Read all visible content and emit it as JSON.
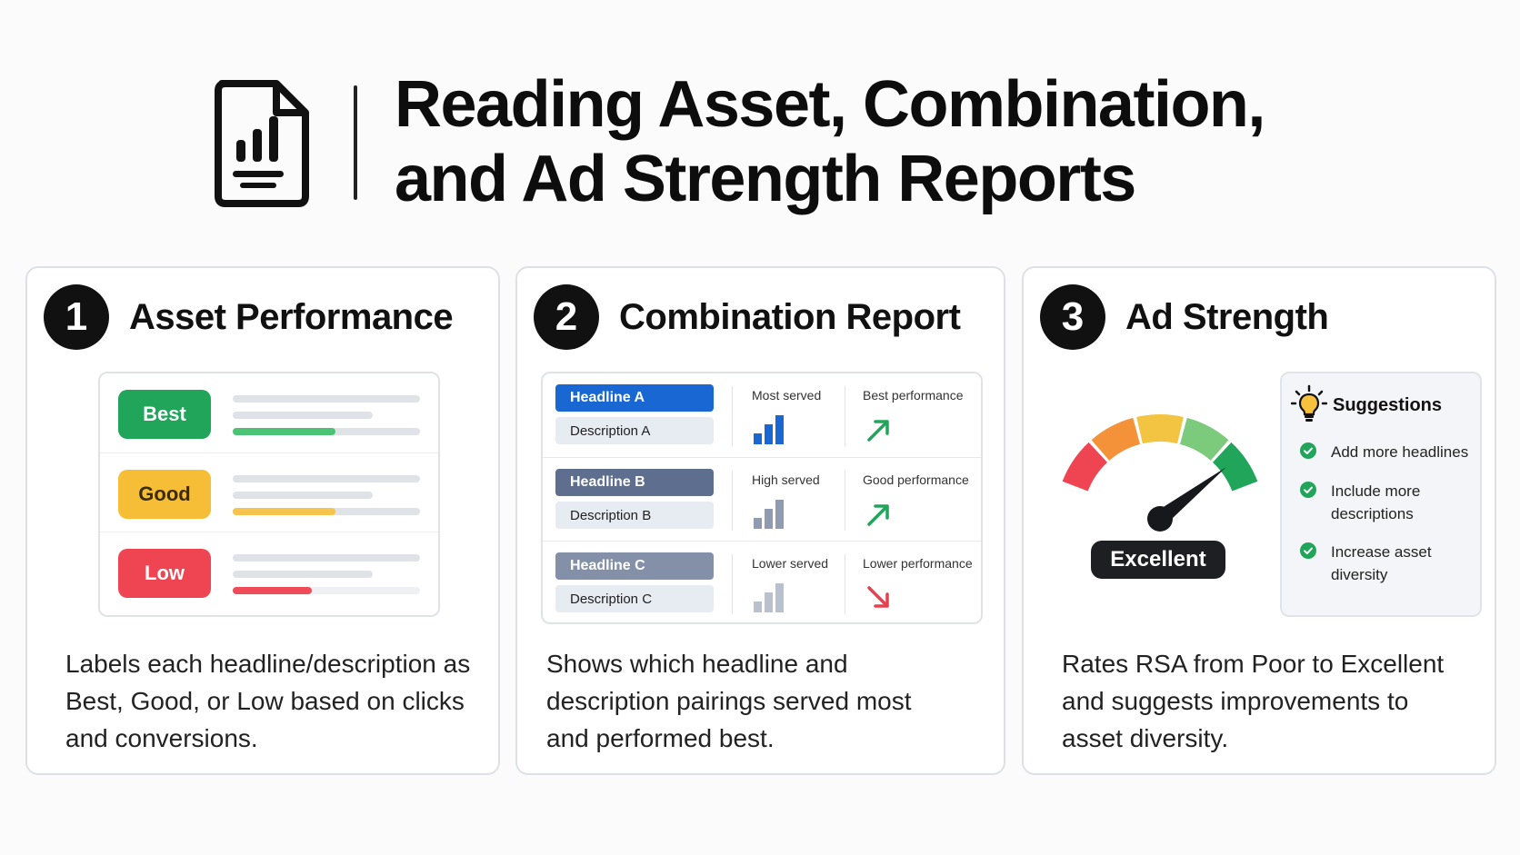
{
  "header": {
    "title_line1": "Reading Asset, Combination,",
    "title_line2": "and Ad Strength Reports",
    "icon": "report-chart-icon"
  },
  "cards": [
    {
      "number": "1",
      "title": "Asset Performance",
      "rows": [
        {
          "label": "Best",
          "color": "#21a55a",
          "text_color": "#ffffff",
          "bar_color": "#4cc274",
          "level": 0.55
        },
        {
          "label": "Good",
          "color": "#f6be36",
          "text_color": "#3a2c00",
          "bar_color": "#f6c44e",
          "level": 0.55
        },
        {
          "label": "Low",
          "color": "#ef4452",
          "text_color": "#ffffff",
          "bar_color": "#ef4b59",
          "level": 0.42
        }
      ],
      "description": "Labels each headline/description as Best, Good, or Low based on clicks and conversions."
    },
    {
      "number": "2",
      "title": "Combination Report",
      "rows": [
        {
          "headline": "Headline A",
          "description": "Description A",
          "headline_color": "#1967d2",
          "served": "Most served",
          "performance": "Best performance",
          "bar_color": "#1967d2",
          "arrow": "up",
          "arrow_color": "#21a55a"
        },
        {
          "headline": "Headline B",
          "description": "Description B",
          "headline_color": "#5d6e8f",
          "served": "High served",
          "performance": "Good performance",
          "bar_color": "#8f9bb0",
          "arrow": "up",
          "arrow_color": "#21a55a"
        },
        {
          "headline": "Headline C",
          "description": "Description C",
          "headline_color": "#8390a8",
          "served": "Lower served",
          "performance": "Lower performance",
          "bar_color": "#b9c1cf",
          "arrow": "down",
          "arrow_color": "#e7404f"
        }
      ],
      "description": "Shows which headline and description pairings served most and performed best."
    },
    {
      "number": "3",
      "title": "Ad Strength",
      "gauge": {
        "label": "Excellent",
        "colors": [
          "#ef4452",
          "#f4923a",
          "#f3c342",
          "#7ccb7c",
          "#21a55a"
        ]
      },
      "suggestions": {
        "title": "Suggestions",
        "icon": "lightbulb-icon",
        "items": [
          "Add more headlines",
          "Include more descriptions",
          "Increase asset diversity"
        ]
      },
      "description": "Rates RSA from Poor to Excellent and suggests improvements to asset diversity."
    }
  ]
}
